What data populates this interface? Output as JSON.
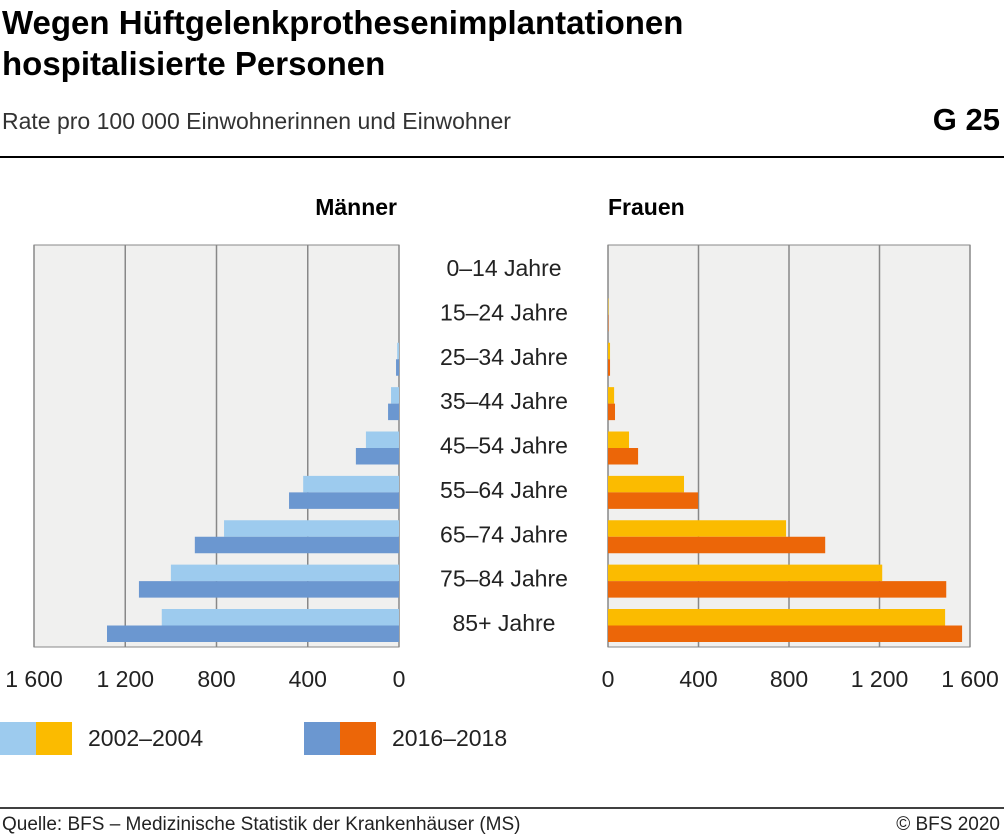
{
  "chart_data": {
    "type": "pyramid",
    "title": "Wegen Hüftgelenkprothesenimplantationen hospitalisierte Personen",
    "subtitle": "Rate pro 100 000 Einwohnerinnen und Einwohner",
    "figure_label": "G 25",
    "categories": [
      "0–14 Jahre",
      "15–24 Jahre",
      "25–34 Jahre",
      "35–44 Jahre",
      "45–54 Jahre",
      "55–64 Jahre",
      "65–74 Jahre",
      "75–84 Jahre",
      "85+ Jahre"
    ],
    "legend": [
      "2002–2004",
      "2016–2018"
    ],
    "grid": true,
    "panels": [
      {
        "title": "Männer",
        "xlim": [
          1600,
          0
        ],
        "xticks": [
          {
            "value": 1600,
            "label": "1 600"
          },
          {
            "value": 1200,
            "label": "1 200"
          },
          800,
          400,
          0
        ],
        "series": [
          {
            "color": "#9dcbee",
            "values": [
              0,
              0,
              8,
              35,
              145,
              420,
              767,
              1000,
              1040
            ]
          },
          {
            "color": "#6b97d0",
            "values": [
              0,
              0,
              13,
              48,
              189,
              482,
              895,
              1140,
              1280
            ]
          }
        ]
      },
      {
        "title": "Frauen",
        "xlim": [
          0,
          1600
        ],
        "xticks": [
          0,
          400,
          800,
          {
            "value": 1200,
            "label": "1 200"
          },
          {
            "value": 1600,
            "label": "1 600"
          }
        ],
        "series": [
          {
            "color": "#fbbb00",
            "values": [
              0,
              2,
              9,
              27,
              93,
              336,
              787,
              1212,
              1490
            ]
          },
          {
            "color": "#ec6608",
            "values": [
              0,
              2,
              9,
              31,
              133,
              398,
              960,
              1495,
              1565
            ]
          }
        ]
      }
    ],
    "source": "Quelle: BFS – Medizinische Statistik der Krankenhäuser (MS)",
    "copyright": "© BFS 2020"
  }
}
